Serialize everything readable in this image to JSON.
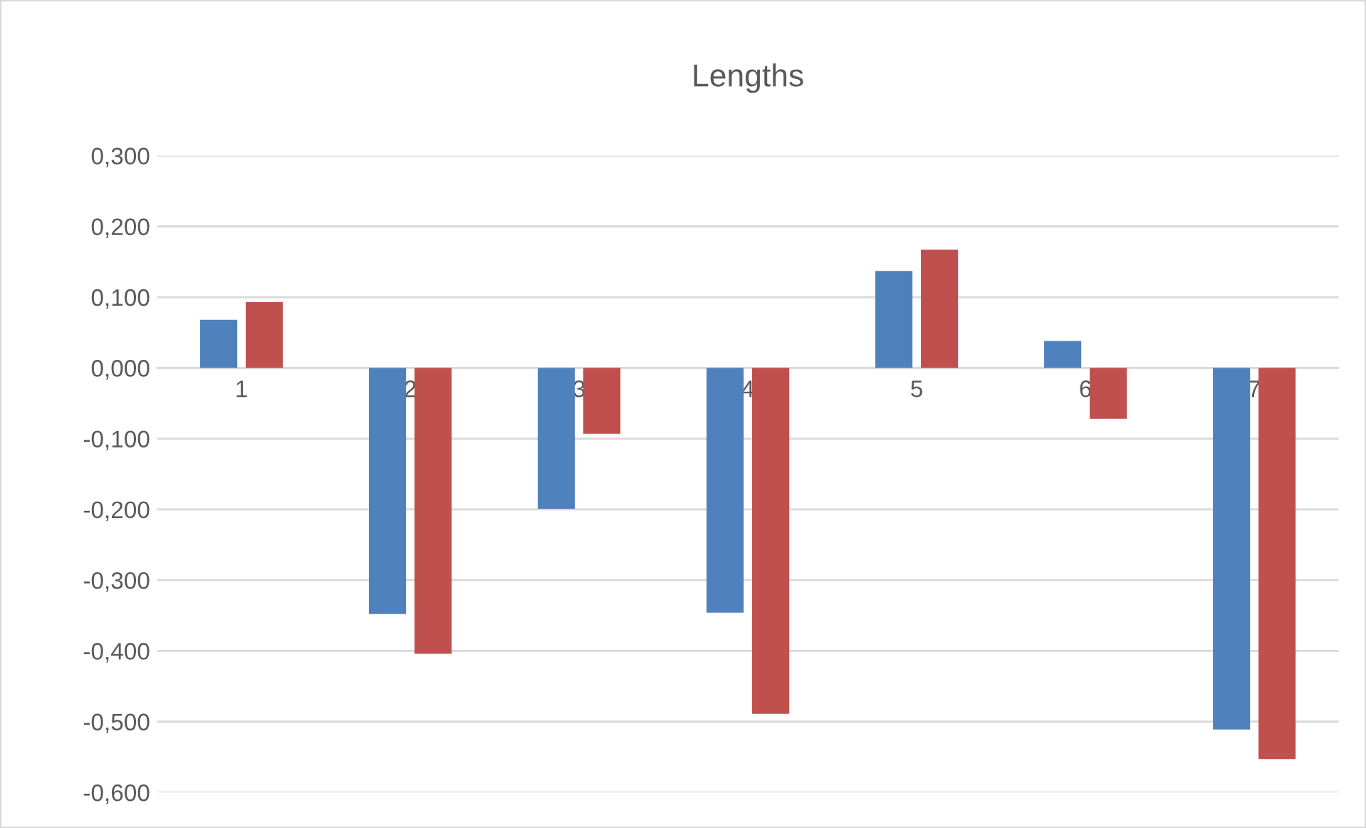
{
  "chart_data": {
    "type": "bar",
    "title": "Lengths",
    "categories": [
      "1",
      "2",
      "3",
      "4",
      "5",
      "6",
      "7"
    ],
    "series": [
      {
        "color": "#4f81bd",
        "values": [
          0.068,
          -0.348,
          -0.199,
          -0.346,
          0.137,
          0.038,
          -0.511
        ]
      },
      {
        "color": "#c0504d",
        "values": [
          0.093,
          -0.404,
          -0.093,
          -0.489,
          0.167,
          -0.072,
          -0.553
        ]
      }
    ],
    "ylim": [
      -0.6,
      0.3
    ],
    "yticks": [
      {
        "value": -0.6,
        "label": "-0,600"
      },
      {
        "value": -0.5,
        "label": "-0,500"
      },
      {
        "value": -0.4,
        "label": "-0,400"
      },
      {
        "value": -0.3,
        "label": "-0,300"
      },
      {
        "value": -0.2,
        "label": "-0,200"
      },
      {
        "value": -0.1,
        "label": "-0,100"
      },
      {
        "value": 0,
        "label": "0,000"
      },
      {
        "value": 0.1,
        "label": "0,100"
      },
      {
        "value": 0.2,
        "label": "0,200"
      },
      {
        "value": 0.3,
        "label": "0,300"
      }
    ],
    "grid": "y"
  }
}
